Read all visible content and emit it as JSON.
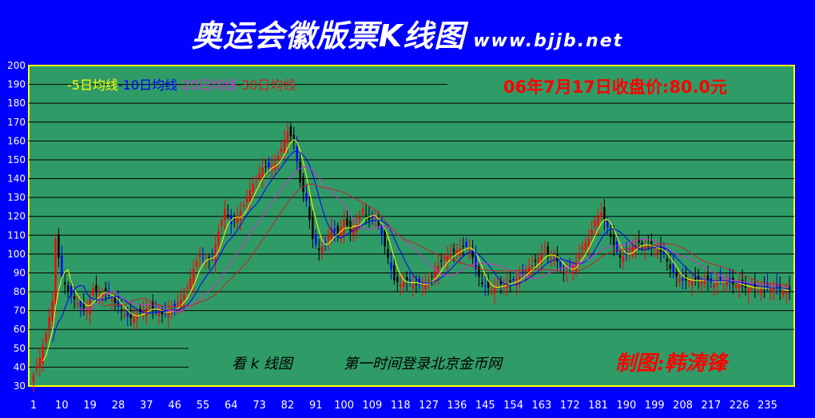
{
  "header": {
    "title": "奥运会徽版票K线图",
    "url": "www.bjjb.net"
  },
  "colors": {
    "background": "#0000fe",
    "plot": "#2f9b67",
    "border": "#ffff00",
    "up_candle": "#ff0000",
    "down_candle": "#000000",
    "down_candle_alt": "#0000ff",
    "ma5": "#ffff00",
    "ma10": "#0000ff",
    "ma20": "#cc33cc",
    "ma30": "#cc2222",
    "text_red": "#ff0000",
    "axis_text": "#ffffff"
  },
  "chart_data": {
    "type": "candlestick",
    "ylim": [
      30,
      200
    ],
    "y_ticks": [
      200,
      190,
      180,
      170,
      160,
      150,
      140,
      130,
      120,
      110,
      100,
      90,
      80,
      70,
      60,
      50,
      40,
      30
    ],
    "x_ticks": [
      "1",
      "10",
      "19",
      "28",
      "37",
      "46",
      "55",
      "64",
      "73",
      "82",
      "91",
      "100",
      "109",
      "118",
      "127",
      "136",
      "145",
      "154",
      "163",
      "172",
      "181",
      "190",
      "199",
      "208",
      "217",
      "226",
      "235"
    ],
    "legend": [
      {
        "label": "-5日均线",
        "color": "#ffff00"
      },
      {
        "label": "-10日均线",
        "color": "#0000ff"
      },
      {
        "label": "-20日均线",
        "color": "#cc33cc"
      },
      {
        "label": "-30日均线",
        "color": "#cc2222"
      }
    ],
    "close_label": "06年7月17日收盘价:80.0元",
    "annotations": {
      "look": "看 k 线图",
      "login": "第一时间登录北京金币网",
      "author": "制图:韩涛锋"
    },
    "close_anchors": [
      [
        1,
        36
      ],
      [
        3,
        45
      ],
      [
        5,
        58
      ],
      [
        7,
        75
      ],
      [
        8,
        108
      ],
      [
        10,
        88
      ],
      [
        12,
        80
      ],
      [
        14,
        76
      ],
      [
        16,
        72
      ],
      [
        18,
        70
      ],
      [
        20,
        82
      ],
      [
        22,
        78
      ],
      [
        24,
        80
      ],
      [
        26,
        76
      ],
      [
        28,
        72
      ],
      [
        30,
        68
      ],
      [
        32,
        66
      ],
      [
        34,
        68
      ],
      [
        36,
        70
      ],
      [
        38,
        72
      ],
      [
        40,
        70
      ],
      [
        42,
        68
      ],
      [
        44,
        70
      ],
      [
        46,
        72
      ],
      [
        48,
        76
      ],
      [
        50,
        82
      ],
      [
        52,
        92
      ],
      [
        54,
        100
      ],
      [
        56,
        96
      ],
      [
        58,
        98
      ],
      [
        60,
        112
      ],
      [
        62,
        124
      ],
      [
        64,
        116
      ],
      [
        66,
        120
      ],
      [
        68,
        126
      ],
      [
        70,
        134
      ],
      [
        72,
        140
      ],
      [
        74,
        146
      ],
      [
        76,
        146
      ],
      [
        78,
        148
      ],
      [
        80,
        156
      ],
      [
        82,
        165
      ],
      [
        84,
        160
      ],
      [
        86,
        138
      ],
      [
        88,
        128
      ],
      [
        90,
        108
      ],
      [
        92,
        102
      ],
      [
        94,
        106
      ],
      [
        96,
        114
      ],
      [
        98,
        110
      ],
      [
        100,
        118
      ],
      [
        102,
        112
      ],
      [
        104,
        116
      ],
      [
        106,
        124
      ],
      [
        108,
        118
      ],
      [
        110,
        120
      ],
      [
        112,
        110
      ],
      [
        114,
        98
      ],
      [
        116,
        86
      ],
      [
        118,
        84
      ],
      [
        120,
        86
      ],
      [
        122,
        84
      ],
      [
        124,
        84
      ],
      [
        126,
        84
      ],
      [
        128,
        88
      ],
      [
        130,
        94
      ],
      [
        132,
        98
      ],
      [
        134,
        100
      ],
      [
        136,
        102
      ],
      [
        138,
        104
      ],
      [
        140,
        104
      ],
      [
        142,
        92
      ],
      [
        144,
        84
      ],
      [
        146,
        82
      ],
      [
        148,
        82
      ],
      [
        150,
        84
      ],
      [
        152,
        84
      ],
      [
        154,
        86
      ],
      [
        156,
        88
      ],
      [
        158,
        92
      ],
      [
        160,
        94
      ],
      [
        162,
        98
      ],
      [
        164,
        102
      ],
      [
        166,
        98
      ],
      [
        168,
        96
      ],
      [
        170,
        90
      ],
      [
        172,
        92
      ],
      [
        174,
        96
      ],
      [
        176,
        104
      ],
      [
        178,
        108
      ],
      [
        180,
        118
      ],
      [
        182,
        122
      ],
      [
        184,
        114
      ],
      [
        186,
        104
      ],
      [
        188,
        98
      ],
      [
        190,
        100
      ],
      [
        192,
        104
      ],
      [
        194,
        106
      ],
      [
        196,
        104
      ],
      [
        198,
        104
      ],
      [
        200,
        102
      ],
      [
        202,
        100
      ],
      [
        204,
        92
      ],
      [
        206,
        88
      ],
      [
        208,
        86
      ],
      [
        210,
        86
      ],
      [
        212,
        86
      ],
      [
        214,
        86
      ],
      [
        216,
        86
      ],
      [
        218,
        84
      ],
      [
        220,
        86
      ],
      [
        222,
        86
      ],
      [
        224,
        84
      ],
      [
        226,
        84
      ],
      [
        228,
        82
      ],
      [
        230,
        82
      ],
      [
        232,
        82
      ],
      [
        234,
        82
      ],
      [
        236,
        82
      ],
      [
        238,
        82
      ],
      [
        240,
        80
      ]
    ],
    "n_bars": 242
  }
}
